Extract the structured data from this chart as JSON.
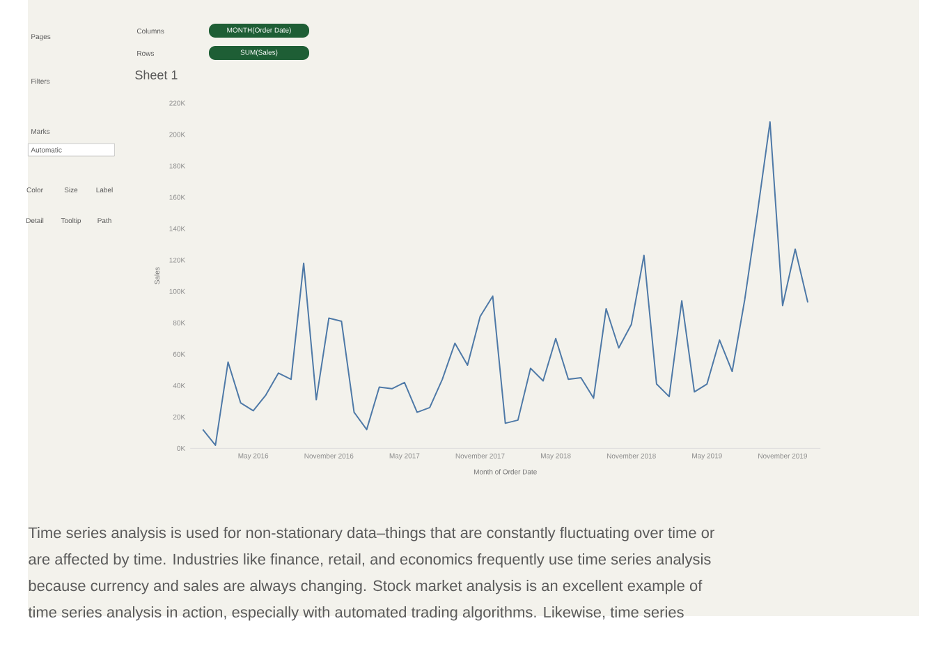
{
  "chart_data": {
    "type": "line",
    "title": "Sheet 1",
    "xlabel": "Month of Order Date",
    "ylabel": "Sales",
    "x": [
      "2016-01",
      "2016-02",
      "2016-03",
      "2016-04",
      "2016-05",
      "2016-06",
      "2016-07",
      "2016-08",
      "2016-09",
      "2016-10",
      "2016-11",
      "2016-12",
      "2017-01",
      "2017-02",
      "2017-03",
      "2017-04",
      "2017-05",
      "2017-06",
      "2017-07",
      "2017-08",
      "2017-09",
      "2017-10",
      "2017-11",
      "2017-12",
      "2018-01",
      "2018-02",
      "2018-03",
      "2018-04",
      "2018-05",
      "2018-06",
      "2018-07",
      "2018-08",
      "2018-09",
      "2018-10",
      "2018-11",
      "2018-12",
      "2019-01",
      "2019-02",
      "2019-03",
      "2019-04",
      "2019-05",
      "2019-06",
      "2019-07",
      "2019-08",
      "2019-09",
      "2019-10",
      "2019-11",
      "2019-12",
      "2020-01"
    ],
    "series": [
      {
        "color": "#4e79a7",
        "values": [
          12000,
          2000,
          55000,
          29000,
          24000,
          34000,
          48000,
          44000,
          118000,
          31000,
          83000,
          81000,
          23000,
          12000,
          39000,
          38000,
          42000,
          23000,
          26000,
          44000,
          67000,
          53000,
          84000,
          97000,
          16000,
          18000,
          51000,
          43000,
          70000,
          44000,
          45000,
          32000,
          89000,
          64000,
          79000,
          123000,
          41000,
          33000,
          94000,
          36000,
          41000,
          69000,
          49000,
          95000,
          150000,
          208000,
          91000,
          127000,
          93000
        ]
      }
    ],
    "xlim": [
      "2015-12",
      "2020-02"
    ],
    "xticks": [
      {
        "value": "2016-05",
        "label": "May 2016"
      },
      {
        "value": "2016-11",
        "label": "November 2016"
      },
      {
        "value": "2017-05",
        "label": "May 2017"
      },
      {
        "value": "2017-11",
        "label": "November 2017"
      },
      {
        "value": "2018-05",
        "label": "May 2018"
      },
      {
        "value": "2018-11",
        "label": "November 2018"
      },
      {
        "value": "2019-05",
        "label": "May 2019"
      },
      {
        "value": "2019-11",
        "label": "November 2019"
      }
    ],
    "ylim": [
      0,
      220000
    ],
    "yticks": [
      {
        "value": 0,
        "label": "0K"
      },
      {
        "value": 20000,
        "label": "20K"
      },
      {
        "value": 40000,
        "label": "40K"
      },
      {
        "value": 60000,
        "label": "60K"
      },
      {
        "value": 80000,
        "label": "80K"
      },
      {
        "value": 100000,
        "label": "100K"
      },
      {
        "value": 120000,
        "label": "120K"
      },
      {
        "value": 140000,
        "label": "140K"
      },
      {
        "value": 160000,
        "label": "160K"
      },
      {
        "value": 180000,
        "label": "180K"
      },
      {
        "value": 200000,
        "label": "200K"
      },
      {
        "value": 220000,
        "label": "220K"
      }
    ],
    "annotations": [
      "Time series analysis is used for non-stationary data–things that are constantly fluctuating over time or",
      "are affected by time. Industries like finance, retail, and economics frequently use time series analysis",
      "because currency and sales are always changing. Stock market analysis is an excellent example of",
      "time series analysis in action, especially with automated trading algorithms. Likewise, time series",
      "Columns",
      "MONTH(Order Date)",
      "Rows",
      "SUM(Sales)",
      "Pages",
      "Filters",
      "Marks",
      "Automatic",
      "Color",
      "Size",
      "Label",
      "Detail",
      "Tooltip",
      "Path"
    ]
  }
}
